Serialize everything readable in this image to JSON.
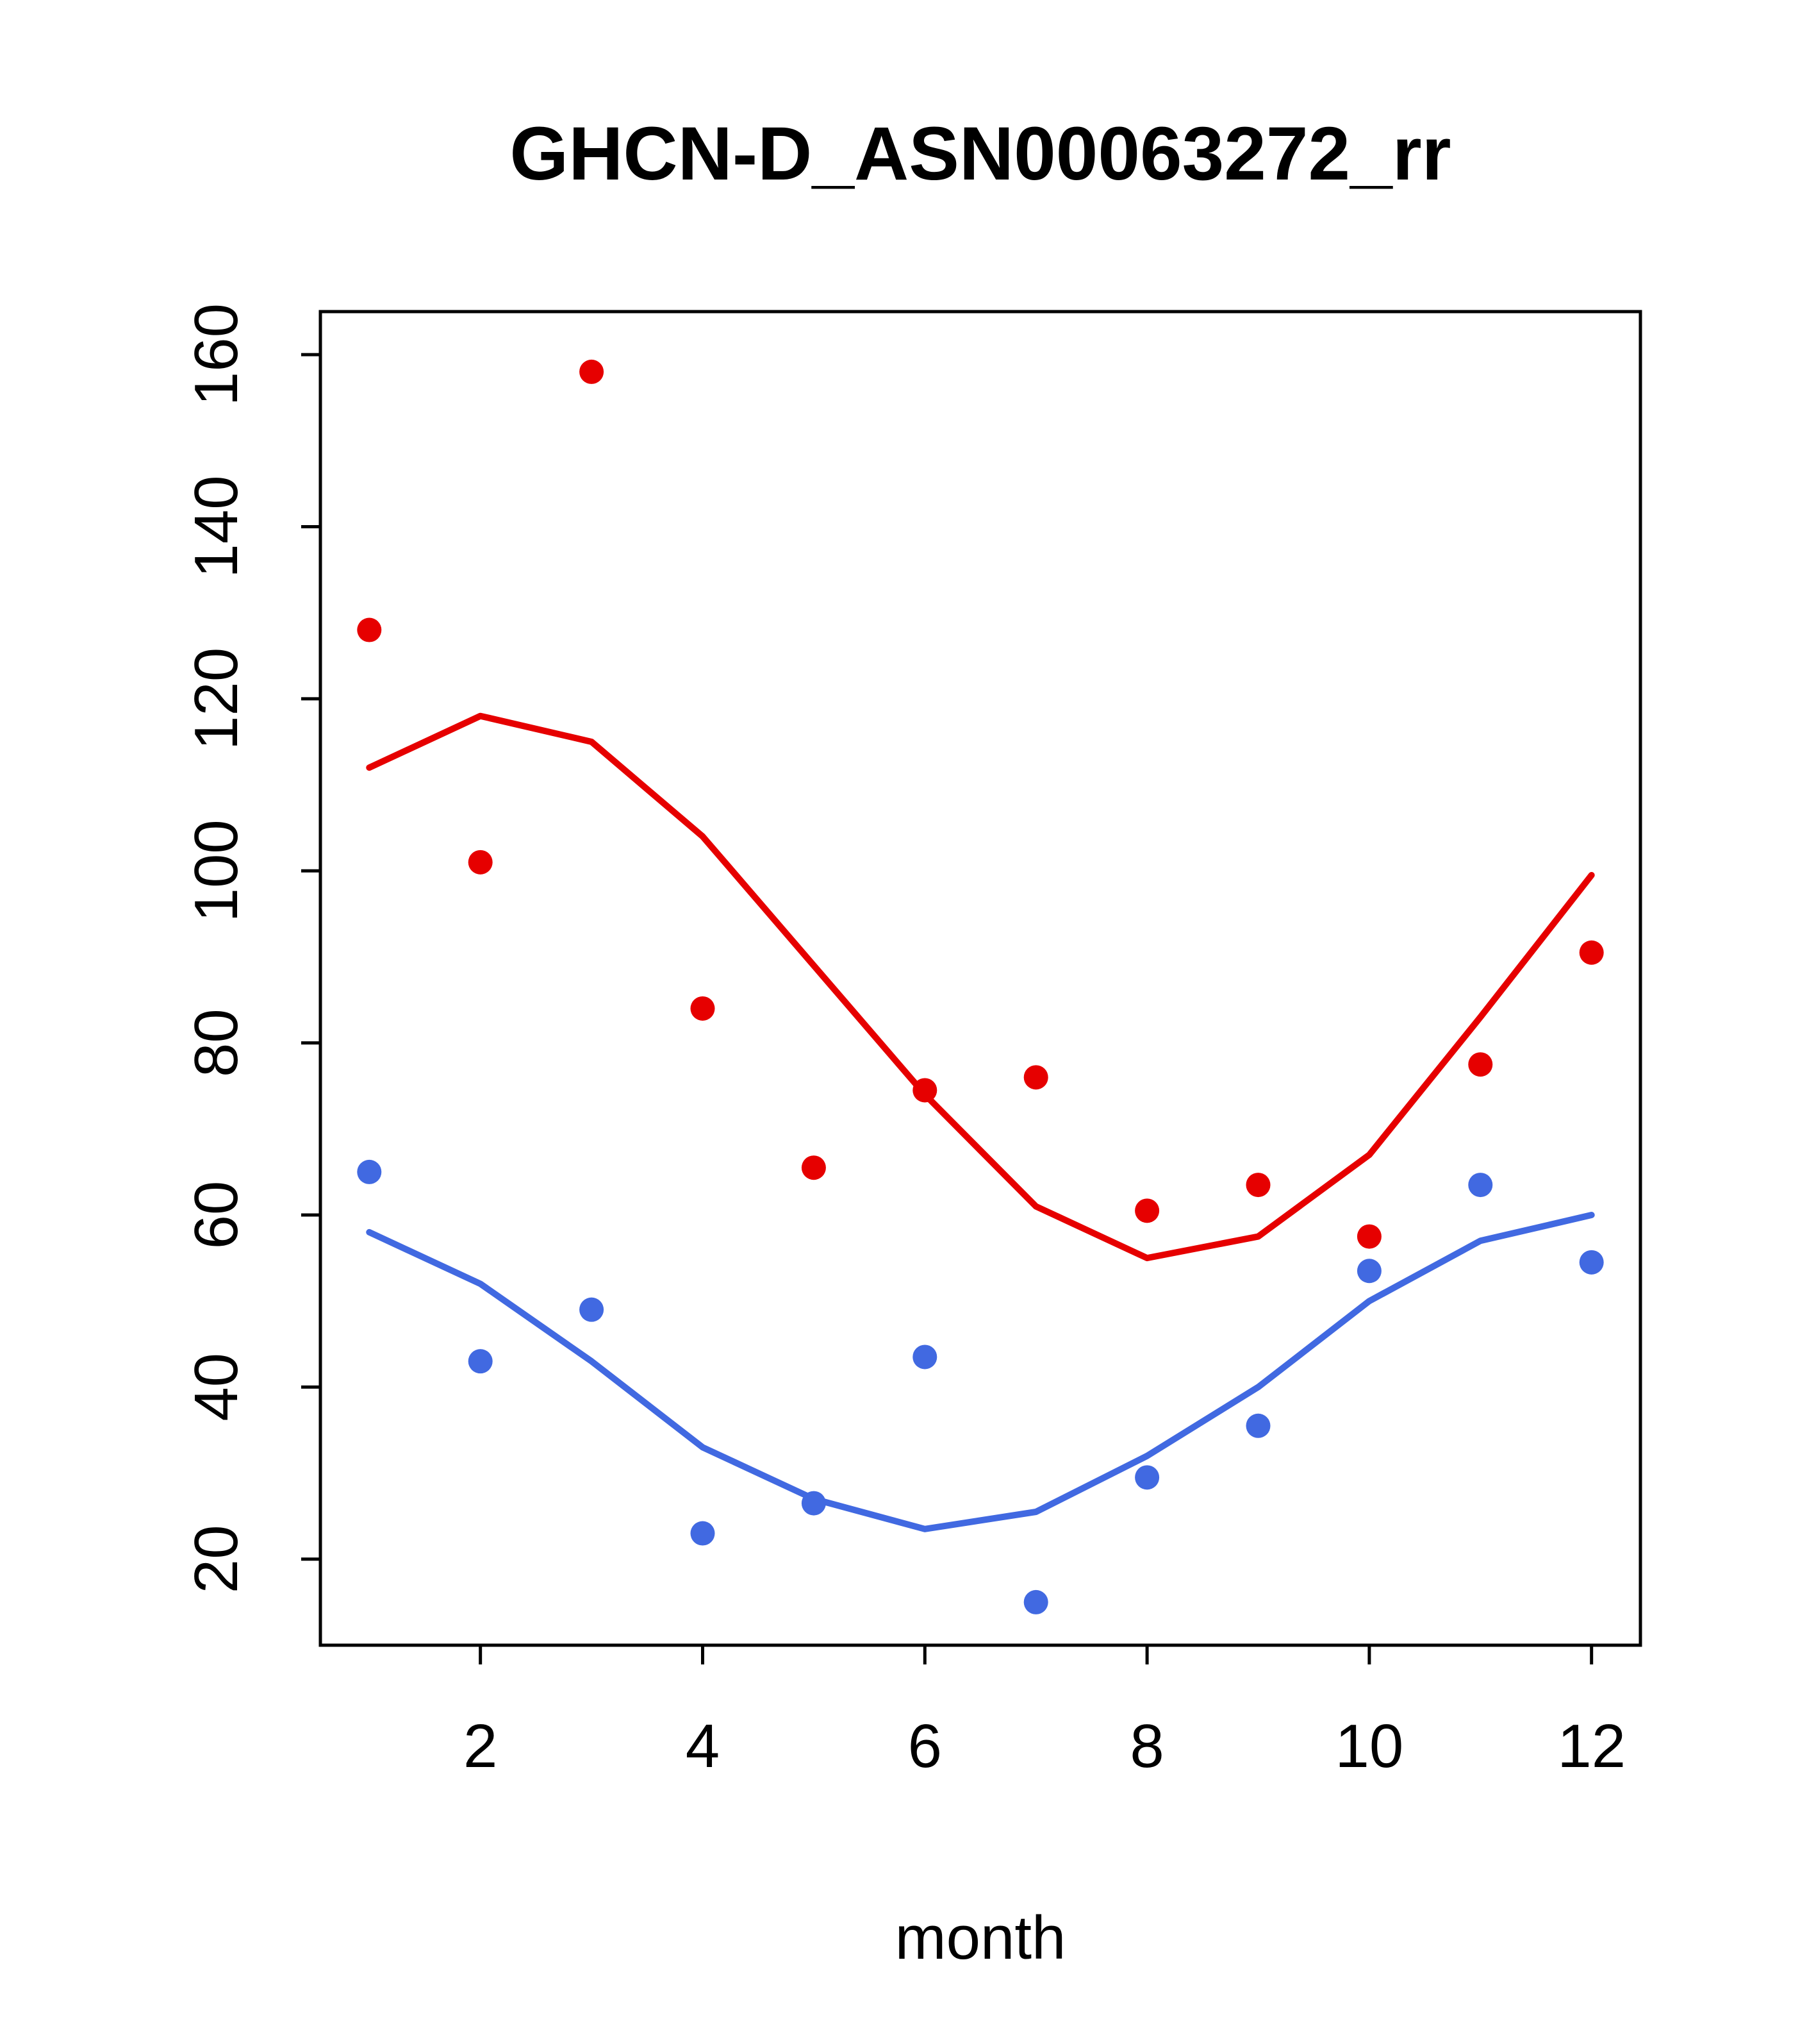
{
  "chart_data": {
    "type": "scatter",
    "title": "GHCN-D_ASN00063272_rr",
    "xlabel": "month",
    "ylabel": "",
    "x": [
      1,
      2,
      3,
      4,
      5,
      6,
      7,
      8,
      9,
      10,
      11,
      12
    ],
    "xlim": [
      0.56,
      12.44
    ],
    "ylim": [
      10,
      165
    ],
    "xticks": [
      2,
      4,
      6,
      8,
      10,
      12
    ],
    "yticks": [
      20,
      40,
      60,
      80,
      100,
      120,
      140,
      160
    ],
    "grid": false,
    "legend": "none",
    "colors": {
      "red": "#e60000",
      "blue": "#4169e1"
    },
    "series": [
      {
        "name": "red-monthly-points",
        "kind": "points",
        "color": "#e60000",
        "values": [
          128,
          101,
          158,
          84,
          65.5,
          74.5,
          76,
          60.5,
          63.5,
          57.5,
          77.5,
          90.5
        ]
      },
      {
        "name": "red-smoothed-line",
        "kind": "line",
        "color": "#e60000",
        "values": [
          112,
          118,
          115,
          104,
          89,
          74,
          61,
          55,
          57.5,
          67,
          83,
          99.5
        ]
      },
      {
        "name": "blue-monthly-points",
        "kind": "points",
        "color": "#4169e1",
        "values": [
          65,
          43,
          49,
          23,
          26.5,
          43.5,
          15,
          29.5,
          35.5,
          53.5,
          63.5,
          54.5
        ]
      },
      {
        "name": "blue-smoothed-line",
        "kind": "line",
        "color": "#4169e1",
        "values": [
          58,
          52,
          43,
          33,
          27,
          23.5,
          25.5,
          32,
          40,
          50,
          57,
          60
        ]
      }
    ]
  }
}
